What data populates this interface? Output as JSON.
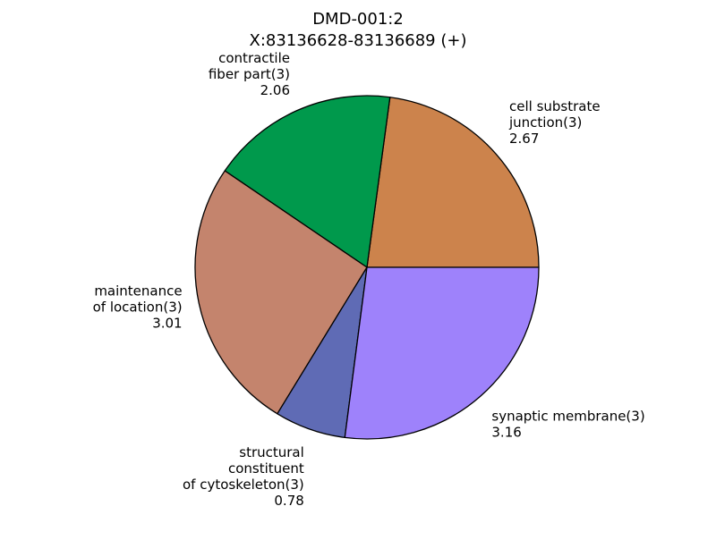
{
  "chart_data": {
    "type": "pie",
    "title": "DMD-001:2",
    "subtitle": "X:83136628-83136689 (+)",
    "start_angle_deg": 0,
    "direction": "counterclockwise",
    "edge_color": "#000000",
    "slices": [
      {
        "label_lines": [
          "cell substrate",
          "junction(3)"
        ],
        "value": 2.67,
        "value_label": "2.67",
        "color": "#cc834c"
      },
      {
        "label_lines": [
          "contractile",
          "fiber part(3)"
        ],
        "value": 2.06,
        "value_label": "2.06",
        "color": "#00994c"
      },
      {
        "label_lines": [
          "maintenance",
          "of location(3)"
        ],
        "value": 3.01,
        "value_label": "3.01",
        "color": "#c4846d"
      },
      {
        "label_lines": [
          "structural",
          "constituent",
          "of cytoskeleton(3)"
        ],
        "value": 0.78,
        "value_label": "0.78",
        "color": "#5f6bb5"
      },
      {
        "label_lines": [
          "synaptic membrane(3)"
        ],
        "value": 3.16,
        "value_label": "3.16",
        "color": "#9e82fb"
      }
    ]
  }
}
